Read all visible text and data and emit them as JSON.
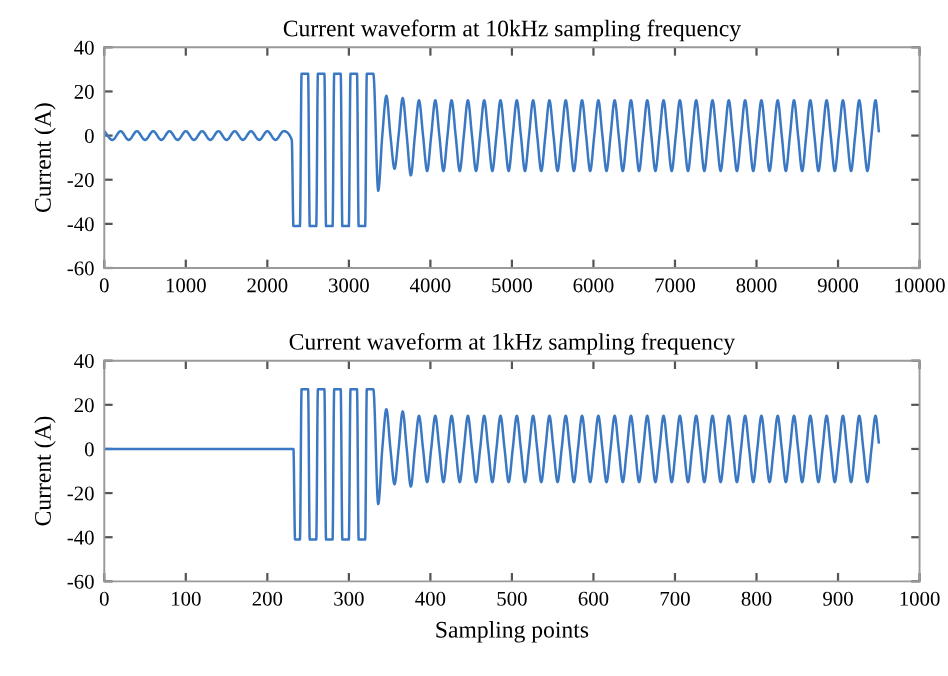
{
  "chart_data": [
    {
      "type": "line",
      "title": "Current waveform at 10kHz sampling frequency",
      "ylabel": "Current (A)",
      "xlim": [
        0,
        10000
      ],
      "ylim": [
        -60,
        40
      ],
      "xticks": [
        0,
        1000,
        2000,
        3000,
        4000,
        5000,
        6000,
        7000,
        8000,
        9000,
        10000
      ],
      "yticks": [
        -60,
        -40,
        -20,
        0,
        20,
        40
      ],
      "series": [
        {
          "color": "#3b78c4",
          "x": [
            0,
            100,
            200,
            300,
            400,
            500,
            600,
            700,
            800,
            900,
            1000,
            1100,
            1200,
            1300,
            1400,
            1500,
            1600,
            1700,
            1800,
            1900,
            2000,
            2100,
            2200,
            2300,
            2320,
            2400,
            2420,
            2500,
            2520,
            2600,
            2620,
            2700,
            2720,
            2800,
            2820,
            2900,
            2920,
            3000,
            3020,
            3100,
            3120,
            3200,
            3220,
            3300,
            3360,
            3410,
            3460,
            3510,
            3560,
            3610,
            3660,
            3710,
            3760,
            3810,
            3860,
            3910,
            3960,
            4010,
            4060,
            4110,
            4160,
            4210,
            4260,
            4310,
            4360,
            4410,
            4460,
            4510,
            4560,
            4610,
            4660,
            4710,
            4760,
            4810,
            4860,
            4910,
            4960,
            5010,
            5060,
            5110,
            5160,
            5210,
            5260,
            5310,
            5360,
            5410,
            5460,
            5510,
            5560,
            5610,
            5660,
            5710,
            5760,
            5810,
            5860,
            5910,
            5960,
            6010,
            6060,
            6110,
            6160,
            6210,
            6260,
            6310,
            6360,
            6410,
            6460,
            6510,
            6560,
            6610,
            6660,
            6710,
            6760,
            6810,
            6860,
            6910,
            6960,
            7010,
            7060,
            7110,
            7160,
            7210,
            7260,
            7310,
            7360,
            7410,
            7460,
            7510,
            7560,
            7610,
            7660,
            7710,
            7760,
            7810,
            7860,
            7910,
            7960,
            8010,
            8060,
            8110,
            8160,
            8210,
            8260,
            8310,
            8360,
            8410,
            8460,
            8510,
            8560,
            8610,
            8660,
            8710,
            8760,
            8810,
            8860,
            8910,
            8960,
            9010,
            9060,
            9110,
            9160,
            9210,
            9260,
            9310,
            9360,
            9410,
            9460,
            9500
          ],
          "values": [
            2,
            -2,
            2,
            -2,
            2,
            -2,
            2,
            -2,
            2,
            -2,
            2,
            -2,
            2,
            -2,
            2,
            -2,
            2,
            -2,
            2,
            -2,
            2,
            -2,
            2,
            -2,
            -41,
            -41,
            28,
            28,
            -41,
            -41,
            28,
            28,
            -41,
            -41,
            28,
            28,
            -41,
            -41,
            28,
            28,
            -41,
            -41,
            28,
            28,
            -25,
            0,
            18,
            0,
            -15,
            0,
            17,
            0,
            -18,
            0,
            16,
            0,
            -16,
            0,
            16,
            0,
            -16,
            0,
            16,
            0,
            -16,
            0,
            16,
            0,
            -16,
            0,
            16,
            0,
            -16,
            0,
            16,
            0,
            -16,
            0,
            16,
            0,
            -16,
            0,
            16,
            0,
            -16,
            0,
            16,
            0,
            -16,
            0,
            16,
            0,
            -16,
            0,
            16,
            0,
            -16,
            0,
            16,
            0,
            -16,
            0,
            16,
            0,
            -16,
            0,
            16,
            0,
            -16,
            0,
            16,
            0,
            -16,
            0,
            16,
            0,
            -16,
            0,
            16,
            0,
            -16,
            0,
            16,
            0,
            -16,
            0,
            16,
            0,
            -16,
            0,
            16,
            0,
            -16,
            0,
            16,
            0,
            -16,
            0,
            16,
            0,
            -16,
            0,
            16,
            0,
            -16,
            0,
            16,
            0,
            -16,
            0,
            16,
            0,
            -16,
            0,
            16,
            0,
            -16,
            0,
            16,
            0,
            -16,
            0,
            16,
            0,
            -16,
            0,
            16,
            2
          ]
        }
      ]
    },
    {
      "type": "line",
      "title": "Current waveform at 1kHz sampling frequency",
      "xlabel": "Sampling points",
      "ylabel": "Current (A)",
      "xlim": [
        0,
        1000
      ],
      "ylim": [
        -60,
        40
      ],
      "xticks": [
        0,
        100,
        200,
        300,
        400,
        500,
        600,
        700,
        800,
        900,
        1000
      ],
      "yticks": [
        -60,
        -40,
        -20,
        0,
        20,
        40
      ],
      "series": [
        {
          "color": "#3b78c4",
          "x": [
            0,
            232,
            234,
            240,
            242,
            250,
            252,
            260,
            262,
            270,
            272,
            280,
            282,
            290,
            292,
            300,
            302,
            310,
            312,
            320,
            322,
            330,
            336,
            341,
            346,
            351,
            356,
            361,
            366,
            371,
            376,
            381,
            386,
            391,
            396,
            401,
            406,
            411,
            416,
            421,
            426,
            431,
            436,
            441,
            446,
            451,
            456,
            461,
            466,
            471,
            476,
            481,
            486,
            491,
            496,
            501,
            506,
            511,
            516,
            521,
            526,
            531,
            536,
            541,
            546,
            551,
            556,
            561,
            566,
            571,
            576,
            581,
            586,
            591,
            596,
            601,
            606,
            611,
            616,
            621,
            626,
            631,
            636,
            641,
            646,
            651,
            656,
            661,
            666,
            671,
            676,
            681,
            686,
            691,
            696,
            701,
            706,
            711,
            716,
            721,
            726,
            731,
            736,
            741,
            746,
            751,
            756,
            761,
            766,
            771,
            776,
            781,
            786,
            791,
            796,
            801,
            806,
            811,
            816,
            821,
            826,
            831,
            836,
            841,
            846,
            851,
            856,
            861,
            866,
            871,
            876,
            881,
            886,
            891,
            896,
            901,
            906,
            911,
            916,
            921,
            926,
            931,
            936,
            941,
            946,
            950
          ],
          "values": [
            0,
            0,
            -41,
            -41,
            27,
            27,
            -41,
            -41,
            27,
            27,
            -41,
            -41,
            27,
            27,
            -41,
            -41,
            27,
            27,
            -41,
            -41,
            27,
            27,
            -25,
            0,
            18,
            0,
            -16,
            0,
            17,
            0,
            -17,
            0,
            15,
            0,
            -15,
            0,
            15,
            0,
            -15,
            0,
            15,
            0,
            -15,
            0,
            15,
            0,
            -15,
            0,
            15,
            0,
            -15,
            0,
            15,
            0,
            -15,
            0,
            15,
            0,
            -15,
            0,
            15,
            0,
            -15,
            0,
            15,
            0,
            -15,
            0,
            15,
            0,
            -15,
            0,
            15,
            0,
            -15,
            0,
            15,
            0,
            -15,
            0,
            15,
            0,
            -15,
            0,
            15,
            0,
            -15,
            0,
            15,
            0,
            -15,
            0,
            15,
            0,
            -15,
            0,
            15,
            0,
            -15,
            0,
            15,
            0,
            -15,
            0,
            15,
            0,
            -15,
            0,
            15,
            0,
            -15,
            0,
            15,
            0,
            -15,
            0,
            15,
            0,
            -15,
            0,
            15,
            0,
            -15,
            0,
            15,
            0,
            -15,
            0,
            15,
            0,
            -15,
            0,
            15,
            0,
            -15,
            0,
            15,
            0,
            -15,
            0,
            15,
            0,
            -15,
            0,
            15,
            3
          ]
        }
      ]
    }
  ]
}
